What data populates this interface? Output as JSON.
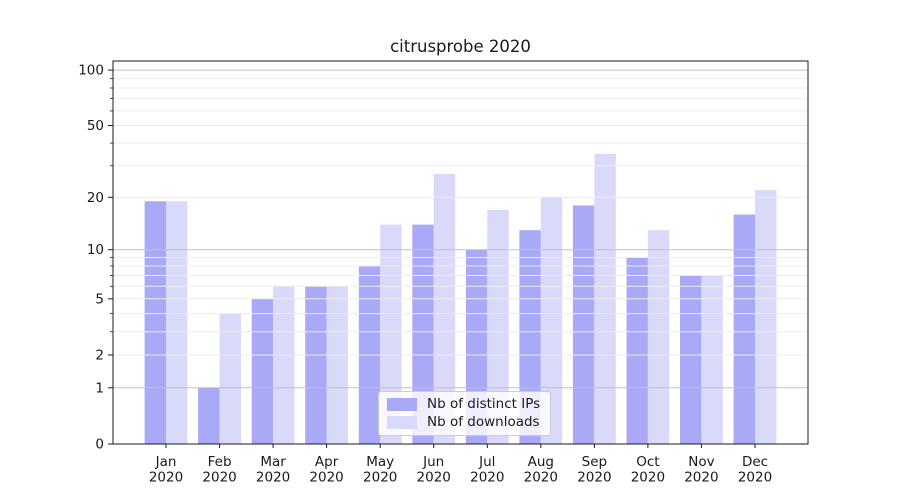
{
  "chart_data": {
    "type": "bar",
    "title": "citrusprobe 2020",
    "categories": [
      "Jan 2020",
      "Feb 2020",
      "Mar 2020",
      "Apr 2020",
      "May 2020",
      "Jun 2020",
      "Jul 2020",
      "Aug 2020",
      "Sep 2020",
      "Oct 2020",
      "Nov 2020",
      "Dec 2020"
    ],
    "series": [
      {
        "name": "Nb of distinct IPs",
        "color": "#a9a9f7",
        "values": [
          19,
          1,
          5,
          6,
          8,
          14,
          10,
          13,
          18,
          9,
          7,
          16
        ]
      },
      {
        "name": "Nb of downloads",
        "color": "#d9d9f9",
        "values": [
          19,
          4,
          6,
          6,
          14,
          27,
          17,
          20,
          35,
          13,
          7,
          22
        ]
      }
    ],
    "xlabel": "",
    "ylabel": "",
    "yscale": "log1p",
    "ylim": [
      0,
      112
    ],
    "yticks_labeled": [
      0,
      1,
      2,
      5,
      10,
      20,
      50,
      100
    ],
    "yticks_minor": [
      3,
      4,
      6,
      7,
      8,
      9,
      30,
      40,
      60,
      70,
      80,
      90
    ],
    "gridlines_major": [
      1,
      10,
      100
    ],
    "gridlines_minor": [
      2,
      3,
      4,
      5,
      6,
      7,
      8,
      9,
      20,
      30,
      40,
      50,
      60,
      70,
      80,
      90
    ],
    "grid": true,
    "legend_position": "lower center",
    "bar_width_frac": 0.4
  },
  "colors": {
    "grid_major": "#c2c2c2",
    "grid_minor": "#ececec",
    "spine": "#1a1a1a",
    "tick": "#1a1a1a",
    "text": "#1a1a1a",
    "background": "#ffffff"
  }
}
